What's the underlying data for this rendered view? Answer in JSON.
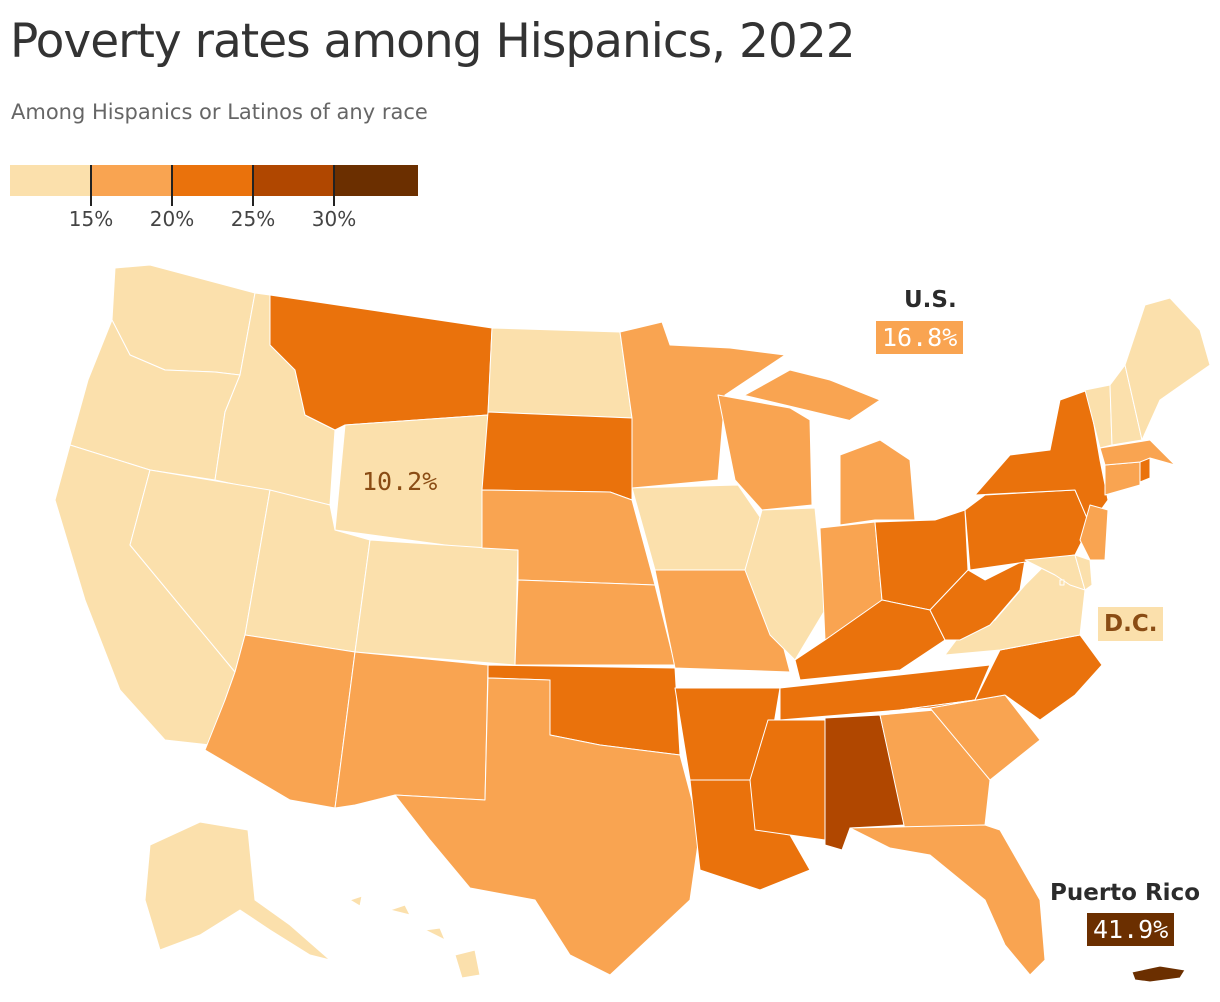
{
  "title": "Poverty rates among Hispanics, 2022",
  "subtitle": "Among Hispanics or Latinos of any race",
  "legend": {
    "bins": [
      {
        "color": "#fbe0ac"
      },
      {
        "color": "#f9a451"
      },
      {
        "color": "#ea720c"
      },
      {
        "color": "#b04700"
      },
      {
        "color": "#6b2f00"
      }
    ],
    "ticks": [
      "15%",
      "20%",
      "25%",
      "30%"
    ]
  },
  "labels": {
    "us_name": "U.S.",
    "us_value": "16.8%",
    "dc_name": "D.C.",
    "pr_name": "Puerto Rico",
    "pr_value": "41.9%",
    "wy_value": "10.2%"
  },
  "map_data": {
    "measure": "poverty rate, Hispanic or Latino",
    "year": 2022,
    "bin_of_state": {
      "WA": 0,
      "OR": 0,
      "CA": 0,
      "ID": 0,
      "NV": 0,
      "UT": 0,
      "WY": 0,
      "CO": 0,
      "ND": 0,
      "IA": 0,
      "IL": 0,
      "VA": 0,
      "MD": 0,
      "DE": 0,
      "DC": 0,
      "VT": 0,
      "NH": 0,
      "ME": 0,
      "AK": 0,
      "HI": 0,
      "AZ": 1,
      "NM": 1,
      "TX": 1,
      "NE": 1,
      "KS": 1,
      "MO": 1,
      "MN": 1,
      "WI": 1,
      "MI": 1,
      "IN": 1,
      "GA": 1,
      "SC": 1,
      "FL": 1,
      "NJ": 1,
      "CT": 1,
      "MA": 1,
      "MT": 2,
      "SD": 2,
      "OK": 2,
      "AR": 2,
      "LA": 2,
      "MS": 2,
      "TN": 2,
      "KY": 2,
      "OH": 2,
      "WV": 2,
      "PA": 2,
      "NY": 2,
      "NC": 2,
      "RI": 2,
      "AL": 3,
      "PR": 4
    },
    "values": {
      "US": 16.8,
      "WY": 10.2,
      "PR": 41.9
    }
  }
}
